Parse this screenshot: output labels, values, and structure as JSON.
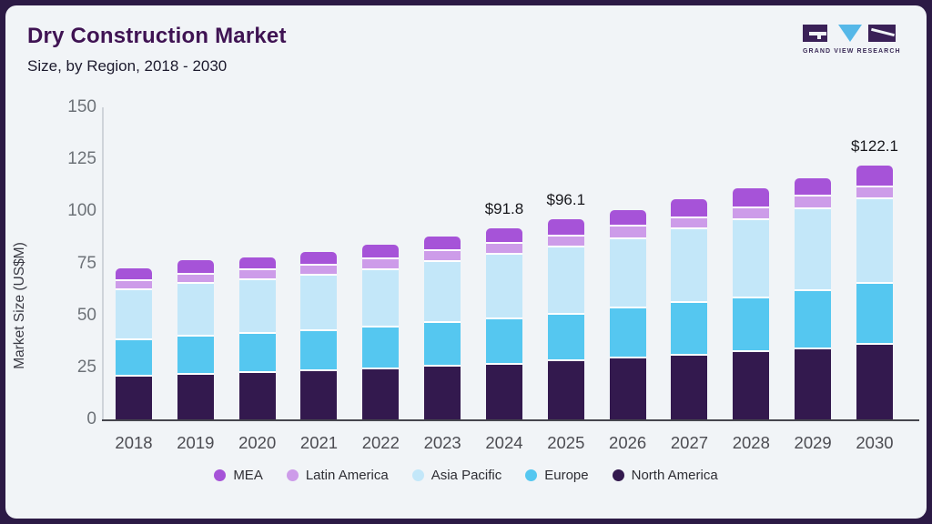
{
  "header": {
    "title": "Dry Construction Market",
    "subtitle": "Size, by Region, 2018 - 2030"
  },
  "logo": {
    "text": "GRAND VIEW RESEARCH"
  },
  "colors": {
    "frame": "#2c1a45",
    "card_bg": "#f1f4f7",
    "title": "#3f1353",
    "axis_line": "#cfd4da",
    "baseline": "#46464e",
    "tick_text": "#6d7278",
    "year_text": "#4c4c52",
    "annotation_text": "#17171c",
    "logo_purple": "#3a2057",
    "logo_blue": "#56b8e8"
  },
  "chart_data": {
    "type": "bar",
    "stacked": true,
    "title": "Dry Construction Market Size, by Region, 2018 - 2030",
    "xlabel": "",
    "ylabel": "Market Size (US$M)",
    "ylim": [
      0,
      150
    ],
    "yticks": [
      0,
      25,
      50,
      75,
      100,
      125,
      150
    ],
    "grid": false,
    "legend_position": "bottom",
    "categories": [
      "2018",
      "2019",
      "2020",
      "2021",
      "2022",
      "2023",
      "2024",
      "2025",
      "2026",
      "2027",
      "2028",
      "2029",
      "2030"
    ],
    "series": [
      {
        "name": "North America",
        "color": "#33194e",
        "values": [
          20.6,
          21.5,
          22.2,
          23.0,
          24.0,
          25.2,
          26.4,
          28.0,
          29.3,
          30.6,
          32.2,
          33.8,
          35.7
        ]
      },
      {
        "name": "Europe",
        "color": "#55c7f0",
        "values": [
          17.3,
          18.3,
          18.8,
          19.6,
          20.3,
          21.0,
          21.8,
          22.5,
          24.1,
          25.4,
          26.1,
          27.7,
          29.5
        ]
      },
      {
        "name": "Asia Pacific",
        "color": "#c3e7f9",
        "values": [
          24.0,
          25.3,
          25.9,
          26.3,
          27.6,
          29.4,
          31.1,
          32.0,
          33.3,
          35.4,
          37.5,
          39.4,
          40.5
        ]
      },
      {
        "name": "Latin America",
        "color": "#cd9ce9",
        "values": [
          4.4,
          4.6,
          4.7,
          4.9,
          5.2,
          5.3,
          5.0,
          5.6,
          5.9,
          5.2,
          5.8,
          6.1,
          5.7
        ]
      },
      {
        "name": "MEA",
        "color": "#a653d8",
        "values": [
          6.5,
          6.7,
          6.4,
          6.7,
          6.7,
          6.9,
          7.5,
          8.0,
          8.0,
          9.1,
          9.4,
          9.1,
          10.7
        ]
      }
    ],
    "totals": [
      72.8,
      76.4,
      78.0,
      80.5,
      83.8,
      87.8,
      91.8,
      96.1,
      100.6,
      105.7,
      111.0,
      116.1,
      122.1
    ],
    "annotations": [
      {
        "category": "2024",
        "label": "$91.8"
      },
      {
        "category": "2025",
        "label": "$96.1"
      },
      {
        "category": "2030",
        "label": "$122.1"
      }
    ],
    "legend_order": [
      "MEA",
      "Latin America",
      "Asia Pacific",
      "Europe",
      "North America"
    ]
  }
}
